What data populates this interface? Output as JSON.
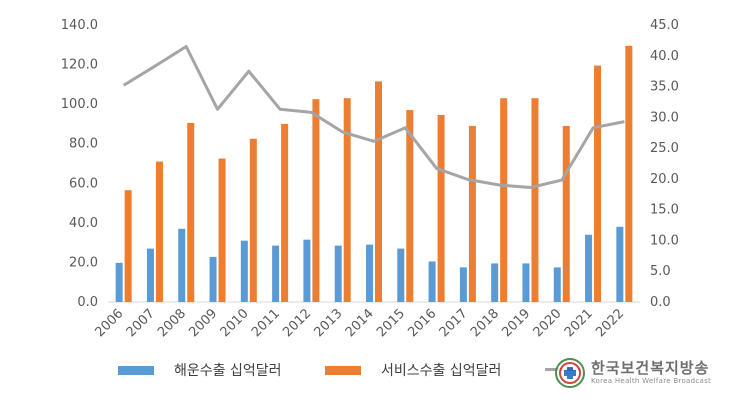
{
  "chart_data": {
    "type": "bar",
    "categories": [
      "2006",
      "2007",
      "2008",
      "2009",
      "2010",
      "2011",
      "2012",
      "2013",
      "2014",
      "2015",
      "2016",
      "2017",
      "2018",
      "2019",
      "2020",
      "2021",
      "2022"
    ],
    "series": [
      {
        "name": "해운수출 십억달러",
        "kind": "bar",
        "axis": "left",
        "color": "#5B9BD5",
        "values": [
          19.8,
          27.0,
          37.0,
          22.8,
          31.0,
          28.5,
          31.5,
          28.5,
          29.0,
          27.0,
          20.5,
          17.5,
          19.5,
          19.5,
          17.5,
          34.0,
          38.0
        ]
      },
      {
        "name": "서비스수출 십억달러",
        "kind": "bar",
        "axis": "left",
        "color": "#ED7D31",
        "values": [
          56.5,
          71.0,
          90.5,
          72.5,
          82.5,
          90.0,
          102.5,
          103.0,
          111.5,
          97.0,
          94.5,
          89.0,
          103.0,
          103.0,
          89.0,
          119.5,
          129.5
        ]
      },
      {
        "name": "",
        "kind": "line",
        "axis": "right",
        "color": "#A5A5A5",
        "values": [
          35.2,
          38.3,
          41.5,
          31.3,
          37.5,
          31.3,
          30.8,
          27.6,
          26.1,
          28.3,
          21.7,
          19.9,
          19.0,
          18.6,
          19.8,
          28.3,
          29.3
        ]
      }
    ],
    "y_left": {
      "min": 0,
      "max": 140,
      "step": 20,
      "tick_labels": [
        "0.0",
        "20.0",
        "40.0",
        "60.0",
        "80.0",
        "100.0",
        "120.0",
        "140.0"
      ]
    },
    "y_right": {
      "min": 0,
      "max": 45,
      "step": 5,
      "tick_labels": [
        "0.0",
        "5.0",
        "10.0",
        "15.0",
        "20.0",
        "25.0",
        "30.0",
        "35.0",
        "40.0",
        "45.0"
      ]
    },
    "grid": false,
    "legend_position": "bottom",
    "colors": {
      "axis_text": "#595959",
      "axis_line": "#D9D9D9"
    }
  },
  "legend": {
    "items": [
      {
        "label": "해운수출 십억달러",
        "color": "#5B9BD5"
      },
      {
        "label": "서비스수출 십억달러",
        "color": "#ED7D31"
      },
      {
        "label": "",
        "color": "#A5A5A5"
      }
    ]
  },
  "watermark": {
    "title": "한국보건복지방송",
    "subtitle": "Korea Health Welfare Broadcast"
  }
}
